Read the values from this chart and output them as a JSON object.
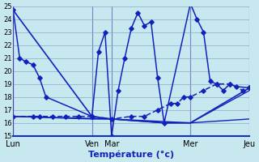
{
  "background_color": "#c8e8f0",
  "grid_color": "#88aacc",
  "line_color": "#1122bb",
  "xlabel": "Température (°c)",
  "ylim": [
    15,
    25
  ],
  "yticks": [
    15,
    16,
    17,
    18,
    19,
    20,
    21,
    22,
    23,
    24,
    25
  ],
  "xlim": [
    0,
    288
  ],
  "day_positions": [
    0,
    96,
    120,
    216,
    288
  ],
  "day_labels": [
    "Lun",
    "Ven",
    "Mar",
    "Mer",
    "Jeu"
  ],
  "line1_x": [
    0,
    8,
    16,
    24,
    32,
    40,
    96,
    104,
    112,
    120,
    128,
    136,
    144,
    152,
    160,
    168,
    176,
    184,
    216,
    224,
    232,
    240,
    248,
    256,
    264,
    272,
    288
  ],
  "line1_y": [
    24.7,
    21.0,
    20.7,
    20.5,
    19.5,
    18.0,
    16.5,
    21.5,
    23.0,
    15.0,
    18.5,
    21.0,
    23.3,
    24.5,
    23.5,
    23.8,
    19.5,
    16.0,
    25.2,
    24.0,
    23.0,
    19.2,
    19.0,
    18.5,
    19.0,
    18.8,
    18.7
  ],
  "line2_x": [
    0,
    24,
    32,
    48,
    64,
    80,
    96,
    120,
    144,
    160,
    176,
    192,
    200,
    208,
    216,
    232,
    248,
    264,
    280,
    288
  ],
  "line2_y": [
    16.5,
    16.5,
    16.5,
    16.5,
    16.5,
    16.5,
    16.5,
    16.3,
    16.5,
    16.5,
    17.0,
    17.5,
    17.5,
    18.0,
    18.0,
    18.5,
    19.0,
    19.0,
    18.5,
    18.7
  ],
  "line3_x": [
    0,
    96,
    120,
    184,
    216,
    288
  ],
  "line3_y": [
    24.7,
    16.5,
    16.3,
    16.0,
    16.0,
    18.7
  ],
  "line4_x": [
    0,
    96,
    120,
    184,
    216,
    288
  ],
  "line4_y": [
    16.5,
    16.3,
    16.3,
    16.0,
    16.0,
    18.5
  ],
  "line5_x": [
    0,
    120,
    216,
    288
  ],
  "line5_y": [
    16.5,
    16.3,
    16.0,
    16.3
  ]
}
